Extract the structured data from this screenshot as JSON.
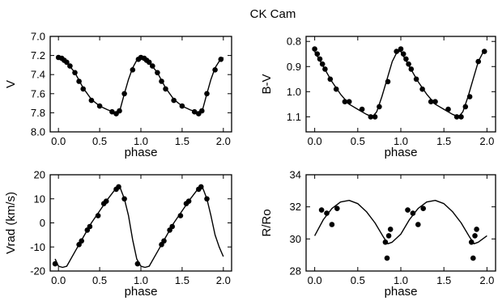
{
  "title": "CK Cam",
  "chart_data": [
    {
      "type": "scatter",
      "xlabel": "phase",
      "ylabel": "V",
      "xlim": [
        -0.1,
        2.1
      ],
      "ylim": [
        7.0,
        8.0
      ],
      "y_reversed": true,
      "xticks": [
        "0.0",
        "0.5",
        "1.0",
        "1.5",
        "2.0"
      ],
      "xtick_values": [
        0,
        0.5,
        1.0,
        1.5,
        2.0
      ],
      "yticks": [
        "7.0",
        "7.2",
        "7.4",
        "7.6",
        "7.8",
        "8.0"
      ],
      "ytick_values": [
        7.0,
        7.2,
        7.4,
        7.6,
        7.8,
        8.0
      ],
      "series": [
        {
          "kind": "points",
          "points": [
            [
              0.0,
              7.22
            ],
            [
              0.04,
              7.23
            ],
            [
              0.07,
              7.25
            ],
            [
              0.1,
              7.27
            ],
            [
              0.14,
              7.31
            ],
            [
              0.2,
              7.38
            ],
            [
              0.25,
              7.47
            ],
            [
              0.3,
              7.55
            ],
            [
              0.4,
              7.67
            ],
            [
              0.5,
              7.73
            ],
            [
              0.65,
              7.79
            ],
            [
              0.7,
              7.81
            ],
            [
              0.74,
              7.78
            ],
            [
              0.8,
              7.6
            ],
            [
              0.9,
              7.35
            ],
            [
              0.97,
              7.24
            ],
            [
              1.0,
              7.22
            ],
            [
              1.04,
              7.23
            ],
            [
              1.07,
              7.25
            ],
            [
              1.1,
              7.27
            ],
            [
              1.14,
              7.31
            ],
            [
              1.2,
              7.38
            ],
            [
              1.25,
              7.47
            ],
            [
              1.3,
              7.55
            ],
            [
              1.4,
              7.67
            ],
            [
              1.5,
              7.73
            ],
            [
              1.65,
              7.79
            ],
            [
              1.7,
              7.81
            ],
            [
              1.74,
              7.78
            ],
            [
              1.8,
              7.6
            ],
            [
              1.9,
              7.35
            ],
            [
              1.97,
              7.24
            ]
          ]
        },
        {
          "kind": "line",
          "points": [
            [
              0.0,
              7.22
            ],
            [
              0.1,
              7.27
            ],
            [
              0.2,
              7.38
            ],
            [
              0.3,
              7.54
            ],
            [
              0.4,
              7.66
            ],
            [
              0.5,
              7.73
            ],
            [
              0.6,
              7.77
            ],
            [
              0.7,
              7.8
            ],
            [
              0.75,
              7.76
            ],
            [
              0.8,
              7.6
            ],
            [
              0.85,
              7.45
            ],
            [
              0.9,
              7.33
            ],
            [
              0.95,
              7.25
            ],
            [
              1.0,
              7.22
            ],
            [
              1.1,
              7.27
            ],
            [
              1.2,
              7.38
            ],
            [
              1.3,
              7.54
            ],
            [
              1.4,
              7.66
            ],
            [
              1.5,
              7.73
            ],
            [
              1.6,
              7.77
            ],
            [
              1.7,
              7.8
            ],
            [
              1.75,
              7.76
            ],
            [
              1.8,
              7.6
            ],
            [
              1.85,
              7.45
            ],
            [
              1.9,
              7.33
            ],
            [
              1.95,
              7.26
            ],
            [
              2.0,
              7.22
            ]
          ]
        }
      ]
    },
    {
      "type": "scatter",
      "xlabel": "phase",
      "ylabel": "B-V",
      "xlim": [
        -0.1,
        2.1
      ],
      "ylim": [
        0.78,
        1.16
      ],
      "y_reversed": true,
      "xticks": [
        "0.0",
        "0.5",
        "1.0",
        "1.5",
        "2.0"
      ],
      "xtick_values": [
        0,
        0.5,
        1.0,
        1.5,
        2.0
      ],
      "yticks": [
        "0.8",
        "0.9",
        "1.0",
        "1.1"
      ],
      "ytick_values": [
        0.8,
        0.9,
        1.0,
        1.1
      ],
      "series": [
        {
          "kind": "points",
          "points": [
            [
              0.0,
              0.83
            ],
            [
              0.03,
              0.85
            ],
            [
              0.06,
              0.87
            ],
            [
              0.09,
              0.89
            ],
            [
              0.12,
              0.91
            ],
            [
              0.18,
              0.95
            ],
            [
              0.25,
              0.99
            ],
            [
              0.35,
              1.04
            ],
            [
              0.4,
              1.04
            ],
            [
              0.55,
              1.07
            ],
            [
              0.65,
              1.1
            ],
            [
              0.7,
              1.1
            ],
            [
              0.75,
              1.06
            ],
            [
              0.85,
              0.96
            ],
            [
              0.95,
              0.84
            ],
            [
              1.0,
              0.83
            ],
            [
              1.03,
              0.85
            ],
            [
              1.06,
              0.87
            ],
            [
              1.09,
              0.89
            ],
            [
              1.12,
              0.91
            ],
            [
              1.18,
              0.95
            ],
            [
              1.25,
              0.99
            ],
            [
              1.35,
              1.04
            ],
            [
              1.4,
              1.04
            ],
            [
              1.55,
              1.07
            ],
            [
              1.65,
              1.1
            ],
            [
              1.7,
              1.1
            ],
            [
              1.75,
              1.06
            ],
            [
              1.8,
              1.02
            ],
            [
              1.9,
              0.88
            ],
            [
              1.97,
              0.84
            ]
          ]
        },
        {
          "kind": "line",
          "points": [
            [
              0.0,
              0.84
            ],
            [
              0.1,
              0.9
            ],
            [
              0.2,
              0.96
            ],
            [
              0.3,
              1.01
            ],
            [
              0.4,
              1.05
            ],
            [
              0.5,
              1.07
            ],
            [
              0.6,
              1.09
            ],
            [
              0.67,
              1.1
            ],
            [
              0.72,
              1.08
            ],
            [
              0.78,
              1.02
            ],
            [
              0.84,
              0.95
            ],
            [
              0.9,
              0.88
            ],
            [
              0.96,
              0.84
            ],
            [
              1.0,
              0.84
            ],
            [
              1.1,
              0.9
            ],
            [
              1.2,
              0.96
            ],
            [
              1.3,
              1.01
            ],
            [
              1.4,
              1.05
            ],
            [
              1.5,
              1.07
            ],
            [
              1.6,
              1.09
            ],
            [
              1.67,
              1.1
            ],
            [
              1.72,
              1.08
            ],
            [
              1.78,
              1.02
            ],
            [
              1.84,
              0.95
            ],
            [
              1.9,
              0.88
            ],
            [
              1.96,
              0.84
            ],
            [
              2.0,
              0.84
            ]
          ]
        }
      ]
    },
    {
      "type": "scatter",
      "xlabel": "phase",
      "ylabel": "Vrad (km/s)",
      "xlim": [
        -0.1,
        2.1
      ],
      "ylim": [
        -20,
        20
      ],
      "y_reversed": false,
      "xticks": [
        "0.0",
        "0.5",
        "1.0",
        "1.5",
        "2.0"
      ],
      "xtick_values": [
        0,
        0.5,
        1.0,
        1.5,
        2.0
      ],
      "yticks": [
        "-20",
        "-10",
        "0",
        "10",
        "20"
      ],
      "ytick_values": [
        -20,
        -10,
        0,
        10,
        20
      ],
      "series": [
        {
          "kind": "points",
          "points": [
            [
              -0.04,
              -17
            ],
            [
              0.25,
              -9
            ],
            [
              0.28,
              -7.5
            ],
            [
              0.35,
              -3
            ],
            [
              0.38,
              -1.5
            ],
            [
              0.48,
              3
            ],
            [
              0.55,
              8
            ],
            [
              0.58,
              9
            ],
            [
              0.7,
              14
            ],
            [
              0.73,
              15
            ],
            [
              0.8,
              10
            ],
            [
              0.96,
              -17
            ],
            [
              1.25,
              -9
            ],
            [
              1.28,
              -7.5
            ],
            [
              1.35,
              -3
            ],
            [
              1.38,
              -1.5
            ],
            [
              1.48,
              3
            ],
            [
              1.55,
              8
            ],
            [
              1.58,
              9
            ],
            [
              1.7,
              14
            ],
            [
              1.73,
              15
            ],
            [
              1.8,
              10
            ]
          ]
        },
        {
          "kind": "line",
          "points": [
            [
              -0.04,
              -15
            ],
            [
              0.0,
              -18
            ],
            [
              0.05,
              -18.5
            ],
            [
              0.1,
              -18
            ],
            [
              0.2,
              -12
            ],
            [
              0.3,
              -6
            ],
            [
              0.4,
              0
            ],
            [
              0.5,
              5
            ],
            [
              0.6,
              10
            ],
            [
              0.7,
              14.5
            ],
            [
              0.75,
              14.5
            ],
            [
              0.8,
              10
            ],
            [
              0.85,
              3
            ],
            [
              0.9,
              -7
            ],
            [
              0.95,
              -15
            ],
            [
              1.0,
              -18
            ],
            [
              1.05,
              -18.5
            ],
            [
              1.1,
              -18
            ],
            [
              1.2,
              -12
            ],
            [
              1.3,
              -6
            ],
            [
              1.4,
              0
            ],
            [
              1.5,
              5
            ],
            [
              1.6,
              10
            ],
            [
              1.7,
              14.5
            ],
            [
              1.75,
              14.5
            ],
            [
              1.8,
              10
            ],
            [
              1.85,
              3
            ],
            [
              1.9,
              -5
            ],
            [
              1.95,
              -10
            ],
            [
              2.0,
              -14
            ]
          ]
        }
      ]
    },
    {
      "type": "scatter",
      "xlabel": "phase",
      "ylabel": "R/Ro",
      "xlim": [
        -0.1,
        2.1
      ],
      "ylim": [
        28,
        34
      ],
      "y_reversed": false,
      "xticks": [
        "0.0",
        "0.5",
        "1.0",
        "1.5",
        "2.0"
      ],
      "xtick_values": [
        0,
        0.5,
        1.0,
        1.5,
        2.0
      ],
      "yticks": [
        "28",
        "30",
        "32",
        "34"
      ],
      "ytick_values": [
        28,
        30,
        32,
        34
      ],
      "series": [
        {
          "kind": "points",
          "points": [
            [
              0.08,
              31.8
            ],
            [
              0.14,
              31.6
            ],
            [
              0.2,
              30.9
            ],
            [
              0.26,
              31.9
            ],
            [
              0.82,
              29.8
            ],
            [
              0.84,
              28.8
            ],
            [
              0.86,
              30.2
            ],
            [
              0.88,
              30.6
            ],
            [
              1.08,
              31.8
            ],
            [
              1.14,
              31.6
            ],
            [
              1.2,
              30.9
            ],
            [
              1.26,
              31.9
            ],
            [
              1.82,
              29.8
            ],
            [
              1.84,
              28.8
            ],
            [
              1.86,
              30.2
            ],
            [
              1.88,
              30.6
            ]
          ]
        },
        {
          "kind": "line",
          "points": [
            [
              0.0,
              30.2
            ],
            [
              0.1,
              31.2
            ],
            [
              0.2,
              31.9
            ],
            [
              0.3,
              32.3
            ],
            [
              0.4,
              32.4
            ],
            [
              0.5,
              32.2
            ],
            [
              0.6,
              31.7
            ],
            [
              0.7,
              31.0
            ],
            [
              0.8,
              30.1
            ],
            [
              0.85,
              29.7
            ],
            [
              0.9,
              29.8
            ],
            [
              1.0,
              30.3
            ],
            [
              1.1,
              31.2
            ],
            [
              1.2,
              31.9
            ],
            [
              1.3,
              32.3
            ],
            [
              1.4,
              32.4
            ],
            [
              1.5,
              32.2
            ],
            [
              1.6,
              31.7
            ],
            [
              1.7,
              31.0
            ],
            [
              1.8,
              30.1
            ],
            [
              1.85,
              29.7
            ],
            [
              1.9,
              29.8
            ],
            [
              2.0,
              30.2
            ]
          ]
        }
      ]
    }
  ]
}
